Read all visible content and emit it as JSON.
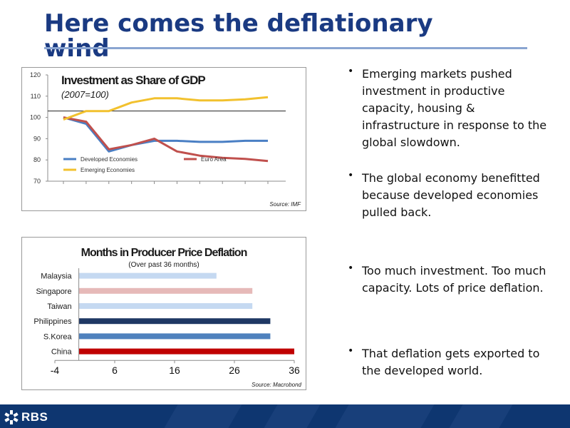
{
  "title": "Here comes the deflationary wind",
  "bullets": [
    "Emerging markets pushed investment in productive capacity, housing & infrastructure in response to the global slowdown.",
    "The global economy benefitted because developed economies pulled back.",
    "Too much investment. Too much capacity. Lots of price deflation.",
    "That deflation gets exported to the developed world."
  ],
  "footer": {
    "logo_text": "RBS"
  },
  "colors": {
    "title": "#1a3a82",
    "footer": "#0e3670"
  },
  "chart_data": [
    {
      "type": "line",
      "title": "Investment as Share of GDP",
      "subtitle": "(2007=100)",
      "source": "Source: IMF",
      "y_ticks": [
        120,
        110,
        100,
        90,
        80,
        70
      ],
      "ylim": [
        70,
        120
      ],
      "reference_line": 103,
      "grid": false,
      "legend_position": "bottom-left",
      "series": [
        {
          "name": "Developed Economies",
          "color": "#4a7fc4",
          "values": [
            100,
            97,
            84,
            87,
            89,
            89,
            88.5,
            88.5,
            89,
            89
          ]
        },
        {
          "name": "Euro Area",
          "color": "#c0504d",
          "values": [
            100,
            98,
            85,
            87,
            90,
            84,
            82,
            81,
            80.5,
            79.5
          ]
        },
        {
          "name": "Emerging Economies",
          "color": "#f2c12e",
          "values": [
            99,
            103,
            103,
            107,
            109,
            109,
            108,
            108,
            108.5,
            109.5
          ]
        }
      ]
    },
    {
      "type": "bar",
      "orientation": "horizontal",
      "title": "Months in Producer Price Deflation",
      "subtitle": "(Over past 36 months)",
      "source": "Source: Macrobond",
      "categories": [
        "Malaysia",
        "Singapore",
        "Taiwan",
        "Philippines",
        "S.Korea",
        "China"
      ],
      "values": [
        23,
        29,
        29,
        32,
        32,
        36
      ],
      "colors": [
        "#c5d9f1",
        "#e6b9b8",
        "#c5d9f1",
        "#1f3864",
        "#4f81bd",
        "#c00000"
      ],
      "x_ticks": [
        "-4",
        "6",
        "16",
        "26",
        "36"
      ],
      "xlim": [
        -4,
        36
      ],
      "grid": false
    }
  ]
}
